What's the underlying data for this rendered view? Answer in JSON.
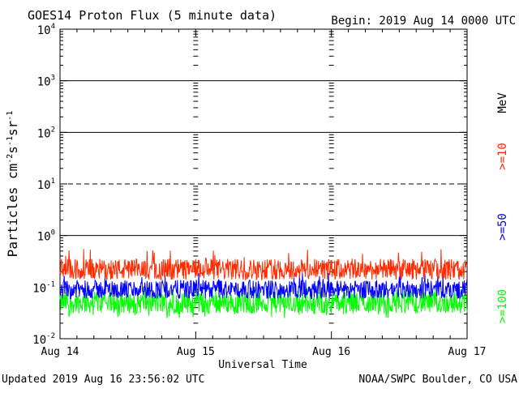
{
  "header": {
    "title": "GOES14 Proton Flux (5 minute data)",
    "begin": "Begin: 2019 Aug 14 0000 UTC"
  },
  "footer": {
    "updated": "Updated 2019 Aug 16 23:56:02 UTC",
    "credit": "NOAA/SWPC Boulder, CO USA"
  },
  "colors": {
    "ge10": "#ff2a00",
    "ge50": "#0000ff",
    "ge100": "#00ff00",
    "axes": "#000000"
  },
  "chart_data": {
    "type": "line",
    "title": "GOES14 Proton Flux (5 minute data)",
    "xlabel": "Universal Time",
    "ylabel": "Particles cm-2 s-1 sr-1",
    "yscale": "log",
    "ylim": [
      0.01,
      10000
    ],
    "y_ticks": [
      {
        "value": 0.01,
        "base": "10",
        "exp": "-2"
      },
      {
        "value": 0.1,
        "base": "10",
        "exp": "-1"
      },
      {
        "value": 1,
        "base": "10",
        "exp": "0"
      },
      {
        "value": 10,
        "base": "10",
        "exp": "1"
      },
      {
        "value": 100,
        "base": "10",
        "exp": "2"
      },
      {
        "value": 1000,
        "base": "10",
        "exp": "3"
      },
      {
        "value": 10000,
        "base": "10",
        "exp": "4"
      }
    ],
    "x_ticks": [
      "Aug 14",
      "Aug 15",
      "Aug 16",
      "Aug 17"
    ],
    "x_range_days": [
      0,
      3
    ],
    "unit_label": "MeV",
    "horizontal_lines": [
      {
        "value": 1000,
        "style": "solid"
      },
      {
        "value": 100,
        "style": "solid"
      },
      {
        "value": 10,
        "style": "dashed"
      },
      {
        "value": 1,
        "style": "solid"
      }
    ],
    "series": [
      {
        "name": ">=10",
        "color": "#ff2a00",
        "typical": 0.22,
        "range": [
          0.14,
          0.55
        ]
      },
      {
        "name": ">=50",
        "color": "#0000ff",
        "typical": 0.09,
        "range": [
          0.06,
          0.2
        ]
      },
      {
        "name": ">=100",
        "color": "#00ff00",
        "typical": 0.05,
        "range": [
          0.025,
          0.1
        ]
      }
    ]
  }
}
